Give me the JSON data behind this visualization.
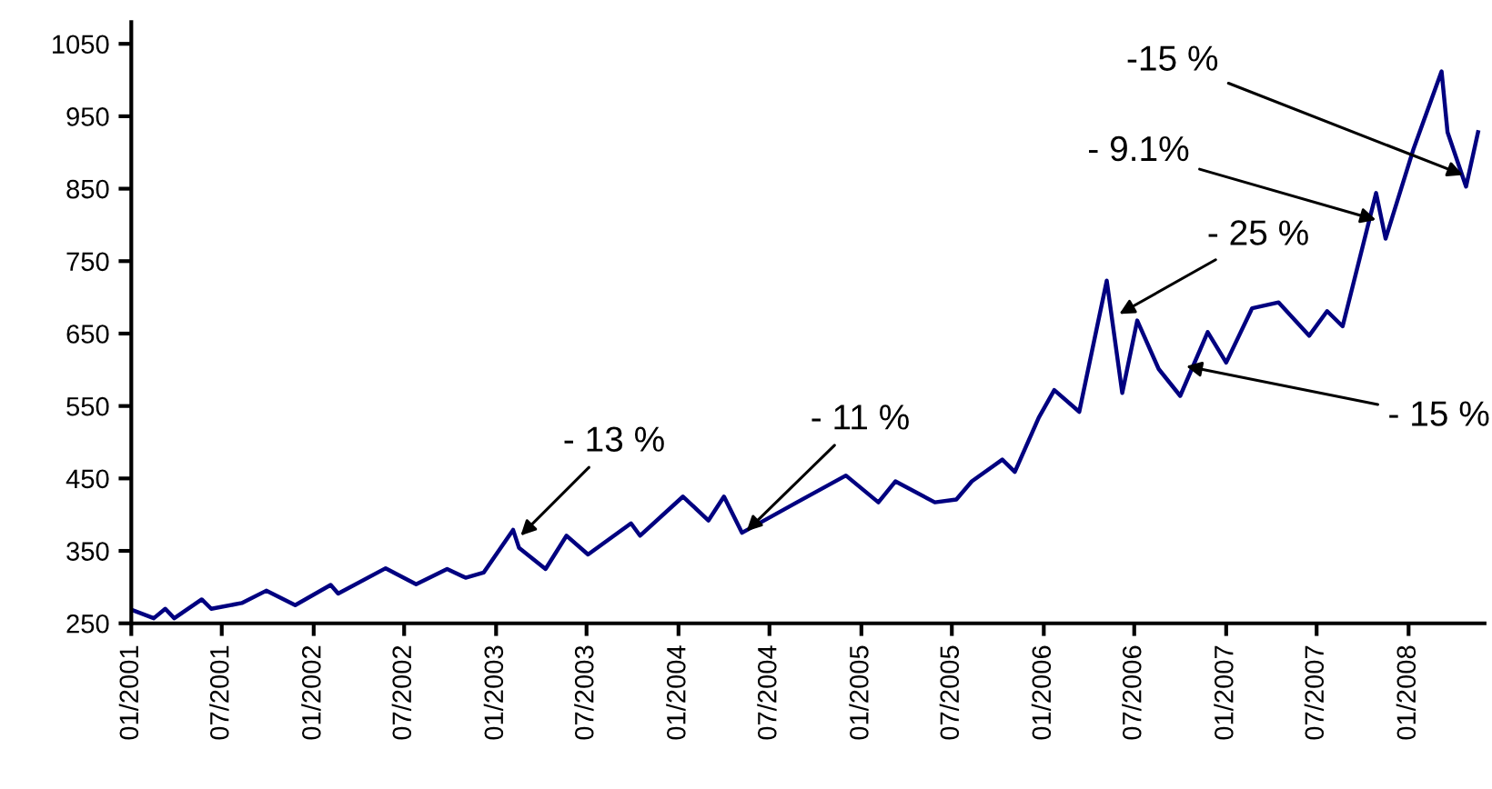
{
  "chart_data": {
    "type": "line",
    "x": [
      "2001-01-04",
      "2001-02-15",
      "2001-03-10",
      "2001-03-28",
      "2001-05-22",
      "2001-06-10",
      "2001-08-10",
      "2001-09-28",
      "2001-11-25",
      "2002-02-04",
      "2002-02-19",
      "2002-05-25",
      "2002-07-25",
      "2002-09-25",
      "2002-11-01",
      "2002-12-07",
      "2003-02-04",
      "2003-02-16",
      "2003-04-10",
      "2003-05-22",
      "2003-07-04",
      "2003-09-28",
      "2003-10-16",
      "2004-01-10",
      "2004-03-01",
      "2004-04-01",
      "2004-05-07",
      "2004-08-25",
      "2004-12-01",
      "2005-02-04",
      "2005-03-10",
      "2005-05-28",
      "2005-07-10",
      "2005-08-10",
      "2005-10-10",
      "2005-11-04",
      "2005-12-22",
      "2006-01-22",
      "2006-03-13",
      "2006-05-07",
      "2006-06-07",
      "2006-07-07",
      "2006-08-19",
      "2006-10-01",
      "2006-11-25",
      "2007-01-01",
      "2007-02-22",
      "2007-04-16",
      "2007-06-16",
      "2007-07-22",
      "2007-08-22",
      "2007-10-28",
      "2007-11-16",
      "2008-01-10",
      "2008-03-07",
      "2008-03-19",
      "2008-04-25",
      "2008-05-19"
    ],
    "series": [
      {
        "color": "#000080",
        "values": [
          268,
          257,
          270,
          257,
          283,
          270,
          278,
          295,
          275,
          303,
          291,
          326,
          304,
          325,
          313,
          320,
          379,
          354,
          325,
          371,
          345,
          388,
          371,
          425,
          392,
          425,
          375,
          417,
          454,
          417,
          446,
          417,
          421,
          446,
          476,
          459,
          534,
          572,
          542,
          723,
          568,
          668,
          601,
          564,
          652,
          610,
          685,
          693,
          647,
          681,
          660,
          844,
          781,
          903,
          1012,
          928,
          853,
          928
        ]
      }
    ],
    "xlim": [
      "2001-01-01",
      "2008-06-01"
    ],
    "xticks": [
      {
        "value": "2001-01-01",
        "label": "01/2001"
      },
      {
        "value": "2001-07-01",
        "label": "07/2001"
      },
      {
        "value": "2002-01-01",
        "label": "01/2002"
      },
      {
        "value": "2002-07-01",
        "label": "07/2002"
      },
      {
        "value": "2003-01-01",
        "label": "01/2003"
      },
      {
        "value": "2003-07-01",
        "label": "07/2003"
      },
      {
        "value": "2004-01-01",
        "label": "01/2004"
      },
      {
        "value": "2004-07-01",
        "label": "07/2004"
      },
      {
        "value": "2005-01-01",
        "label": "01/2005"
      },
      {
        "value": "2005-07-01",
        "label": "07/2005"
      },
      {
        "value": "2006-01-01",
        "label": "01/2006"
      },
      {
        "value": "2006-07-01",
        "label": "07/2006"
      },
      {
        "value": "2007-01-01",
        "label": "01/2007"
      },
      {
        "value": "2007-07-01",
        "label": "07/2007"
      },
      {
        "value": "2008-01-01",
        "label": "01/2008"
      }
    ],
    "ylim": [
      250,
      1080
    ],
    "yticks": [
      250,
      350,
      450,
      550,
      650,
      750,
      850,
      950,
      1050
    ],
    "grid": false,
    "legend": false,
    "marker": "none",
    "line_style": "solid",
    "annotations": [
      {
        "text": "- 13 %",
        "x": "2003-02-19",
        "y": 371
      },
      {
        "text": "- 11 %",
        "x": "2004-05-16",
        "y": 377
      },
      {
        "text": "- 25 %",
        "x": "2006-06-01",
        "y": 677
      },
      {
        "text": "- 15 %",
        "x": "2006-10-13",
        "y": 605
      },
      {
        "text": "- 9.1%",
        "x": "2007-10-28",
        "y": 807
      },
      {
        "text": "-15 %",
        "x": "2008-04-19",
        "y": 869
      }
    ]
  }
}
